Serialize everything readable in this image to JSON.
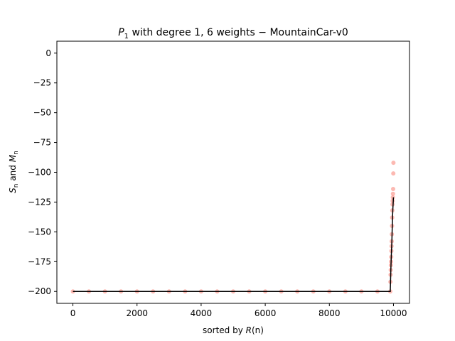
{
  "chart_data": {
    "type": "scatter",
    "title_parts": {
      "var": "P",
      "sub": "1",
      "rest": " with degree 1, 6 weights − MountainCar-v0"
    },
    "xlabel_parts": {
      "prefix": "sorted by ",
      "var": "R",
      "suffix": "(n)"
    },
    "ylabel_parts": {
      "s": "S",
      "s_sub": "n",
      "mid": " and ",
      "m": "M",
      "m_sub": "n"
    },
    "xlim": [
      -500,
      10500
    ],
    "ylim": [
      -210,
      10
    ],
    "xticks": [
      0,
      2000,
      4000,
      6000,
      8000,
      10000
    ],
    "xtick_labels": [
      "0",
      "2000",
      "4000",
      "6000",
      "8000",
      "10000"
    ],
    "yticks": [
      0,
      -25,
      -50,
      -75,
      -100,
      -125,
      -150,
      -175,
      -200
    ],
    "ytick_labels": [
      "0",
      "−25",
      "−50",
      "−75",
      "−100",
      "−125",
      "−150",
      "−175",
      "−200"
    ],
    "grid": false,
    "colors": {
      "scatter": "#fa8072",
      "line": "#000000"
    },
    "series": [
      {
        "kind": "scatter",
        "x": [
          0,
          500,
          1000,
          1500,
          2000,
          2500,
          3000,
          3500,
          4000,
          4500,
          5000,
          5500,
          6000,
          6500,
          7000,
          7500,
          8000,
          8500,
          9000,
          9500,
          9900,
          9905,
          9910,
          9915,
          9920,
          9925,
          9930,
          9935,
          9940,
          9945,
          9950,
          9955,
          9960,
          9965,
          9970,
          9975,
          9980,
          9985,
          9990,
          9995,
          9999
        ],
        "y": [
          -200,
          -200,
          -200,
          -200,
          -200,
          -200,
          -200,
          -200,
          -200,
          -200,
          -200,
          -200,
          -200,
          -200,
          -200,
          -200,
          -200,
          -200,
          -200,
          -200,
          -200,
          -192,
          -186,
          -182,
          -178,
          -175,
          -171,
          -166,
          -162,
          -158,
          -152,
          -145,
          -138,
          -132,
          -127,
          -124,
          -121,
          -118,
          -114,
          -101,
          -92
        ]
      },
      {
        "kind": "line",
        "x": [
          0,
          9900,
          9910,
          9920,
          9930,
          9940,
          9950,
          9960,
          9970,
          9980,
          9990,
          9999
        ],
        "y": [
          -200,
          -200,
          -190,
          -180,
          -172,
          -165,
          -158,
          -148,
          -138,
          -131,
          -126,
          -121
        ]
      }
    ]
  }
}
